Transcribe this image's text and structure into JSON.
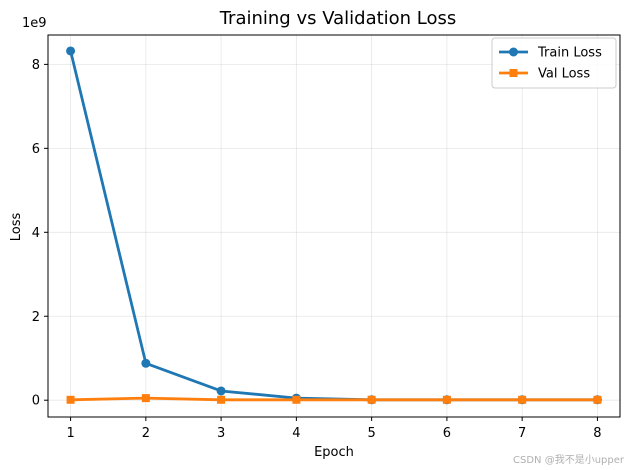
{
  "chart_data": {
    "type": "line",
    "title": "Training vs Validation Loss",
    "xlabel": "Epoch",
    "ylabel": "Loss",
    "x": [
      1,
      2,
      3,
      4,
      5,
      6,
      7,
      8
    ],
    "xlim": [
      0.7,
      8.3
    ],
    "ylim": [
      -0.4,
      8.7
    ],
    "y_scale_label": "1e9",
    "y_ticks": [
      0,
      2,
      4,
      6,
      8
    ],
    "grid": true,
    "legend_position": "top-right",
    "series": [
      {
        "name": "Train Loss",
        "color": "#1f77b4",
        "marker": "circle",
        "values": [
          8.32,
          0.88,
          0.22,
          0.05,
          0.01,
          0.01,
          0.01,
          0.01
        ]
      },
      {
        "name": "Val Loss",
        "color": "#ff7f0e",
        "marker": "square",
        "values": [
          0.01,
          0.05,
          0.01,
          0.01,
          0.01,
          0.01,
          0.01,
          0.01
        ]
      }
    ]
  },
  "watermark": "CSDN @我不是小upper"
}
